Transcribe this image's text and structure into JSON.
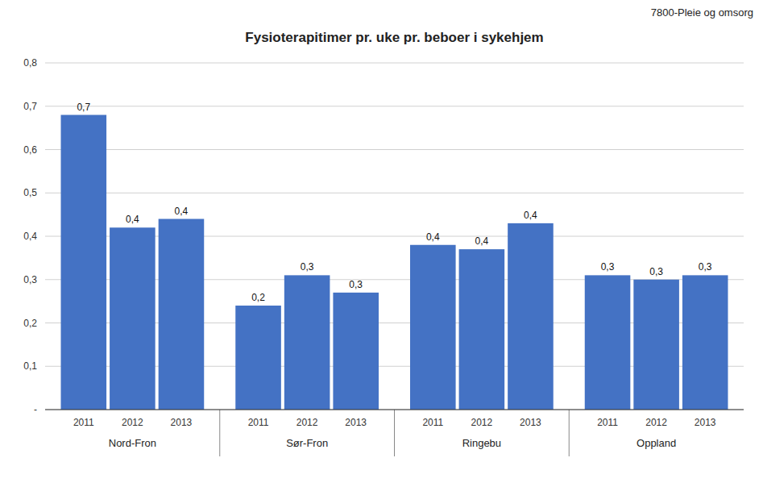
{
  "chart_data": {
    "type": "bar",
    "title": "Fysioterapitimer pr. uke pr. beboer i sykehjem",
    "subtitle": "7800-Pleie og omsorg",
    "categories": [
      "Nord-Fron",
      "Sør-Fron",
      "Ringebu",
      "Oppland"
    ],
    "series": [
      {
        "name": "2011",
        "color": "#4472C4",
        "values": [
          0.68,
          0.24,
          0.38,
          0.31
        ],
        "value_labels": [
          "0,7",
          "0,2",
          "0,4",
          "0,3"
        ]
      },
      {
        "name": "2012",
        "color": "#4472C4",
        "values": [
          0.42,
          0.31,
          0.37,
          0.3
        ],
        "value_labels": [
          "0,4",
          "0,3",
          "0,4",
          "0,3"
        ]
      },
      {
        "name": "2013",
        "color": "#4472C4",
        "values": [
          0.44,
          0.27,
          0.43,
          0.31
        ],
        "value_labels": [
          "0,4",
          "0,3",
          "0,4",
          "0,3"
        ]
      }
    ],
    "ylim": [
      0,
      0.8
    ],
    "yticks": [
      {
        "value": 0.0,
        "label": "-"
      },
      {
        "value": 0.1,
        "label": "0,1"
      },
      {
        "value": 0.2,
        "label": "0,2"
      },
      {
        "value": 0.3,
        "label": "0,3"
      },
      {
        "value": 0.4,
        "label": "0,4"
      },
      {
        "value": 0.5,
        "label": "0,5"
      },
      {
        "value": 0.6,
        "label": "0,6"
      },
      {
        "value": 0.7,
        "label": "0,7"
      },
      {
        "value": 0.8,
        "label": "0,8"
      }
    ],
    "grid": true,
    "data_labels": true
  }
}
